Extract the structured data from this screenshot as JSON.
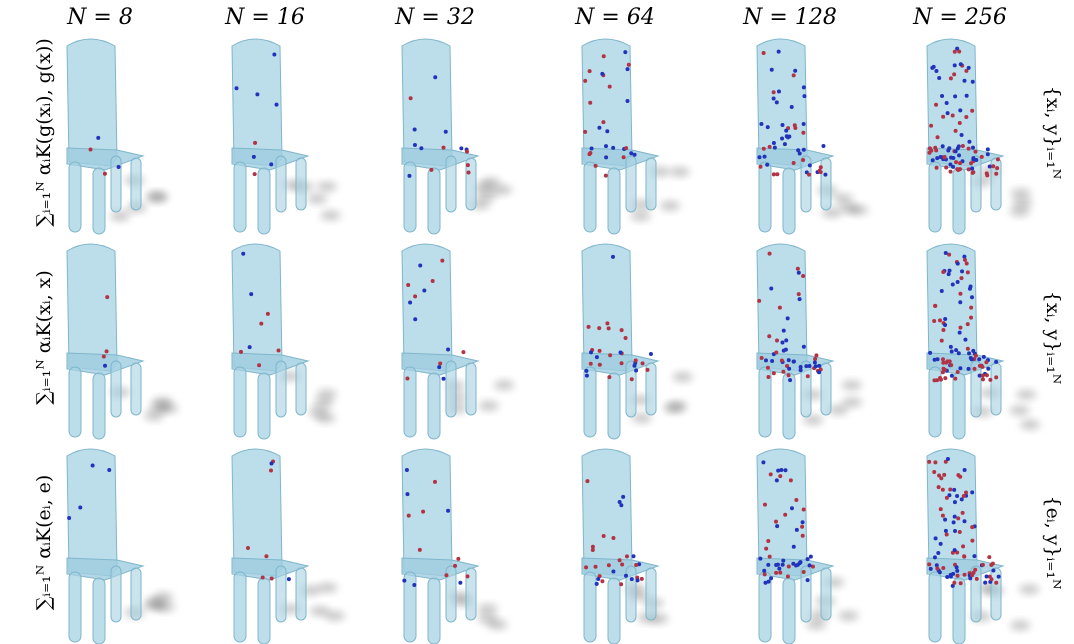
{
  "figure": {
    "columns": [
      "N = 8",
      "N = 16",
      "N = 32",
      "N = 64",
      "N = 128",
      "N = 256"
    ],
    "rows": [
      {
        "left_label": "∑ᵢ₌₁ᴺ αᵢK(g(xᵢ), g(x))",
        "right_label": "{xᵢ, y}ᵢ₌₁ᴺ"
      },
      {
        "left_label": "∑ᵢ₌₁ᴺ αᵢK(xᵢ, x)",
        "right_label": "{xᵢ, y}ᵢ₌₁ᴺ"
      },
      {
        "left_label": "∑ᵢ₌₁ᴺ αᵢK(eᵢ, e)",
        "right_label": "{eᵢ, y}ᵢ₌₁ᴺ"
      }
    ]
  }
}
